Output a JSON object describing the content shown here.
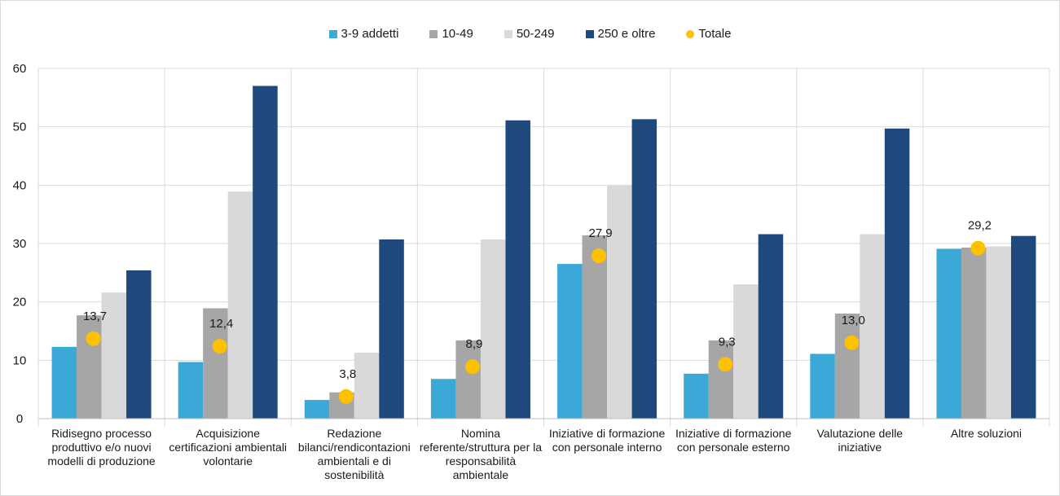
{
  "chart_data": {
    "type": "bar",
    "categories": [
      "Ridisegno processo produttivo e/o nuovi modelli di produzione",
      "Acquisizione certificazioni ambientali volontarie",
      "Redazione bilanci/rendicontazioni ambientali e di sostenibilità",
      "Nomina referente/struttura per la responsabilità ambientale",
      "Iniziative di formazione con personale interno",
      "Iniziative di formazione con personale esterno",
      "Valutazione delle iniziative",
      "Altre soluzioni"
    ],
    "series": [
      {
        "name": "3-9 addetti",
        "color": "#3aa9d8",
        "values": [
          12.3,
          9.7,
          3.2,
          6.8,
          26.5,
          7.7,
          11.1,
          29.1
        ]
      },
      {
        "name": "10-49",
        "color": "#a6a6a6",
        "values": [
          17.7,
          18.9,
          4.5,
          13.4,
          31.4,
          13.4,
          18.0,
          29.3
        ]
      },
      {
        "name": "50-249",
        "color": "#d9d9d9",
        "values": [
          21.6,
          38.9,
          11.3,
          30.7,
          39.9,
          23.0,
          31.6,
          29.5
        ]
      },
      {
        "name": "250 e oltre",
        "color": "#1f497d",
        "values": [
          25.4,
          57.0,
          30.7,
          51.1,
          51.3,
          31.6,
          49.7,
          31.3
        ]
      }
    ],
    "overlay": {
      "name": "Totale",
      "color": "#ffc000",
      "values": [
        13.7,
        12.4,
        3.8,
        8.9,
        27.9,
        9.3,
        13.0,
        29.2
      ],
      "labels": [
        "13,7",
        "12,4",
        "3,8",
        "8,9",
        "27,9",
        "9,3",
        "13,0",
        "29,2"
      ]
    },
    "ylim": [
      0,
      60
    ],
    "yticks": [
      "0",
      "10",
      "20",
      "30",
      "40",
      "50",
      "60"
    ],
    "grid": true,
    "legend_position": "top-center"
  }
}
